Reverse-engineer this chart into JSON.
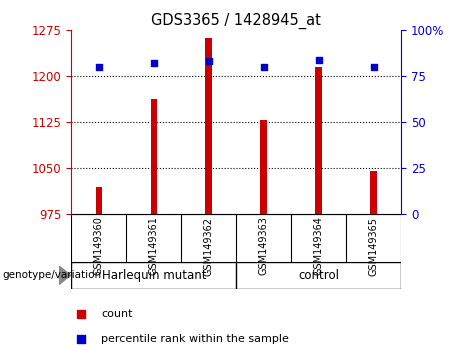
{
  "title": "GDS3365 / 1428945_at",
  "samples": [
    "GSM149360",
    "GSM149361",
    "GSM149362",
    "GSM149363",
    "GSM149364",
    "GSM149365"
  ],
  "counts": [
    1020,
    1162,
    1262,
    1128,
    1215,
    1045
  ],
  "percentiles": [
    80,
    82,
    83,
    80,
    84,
    80
  ],
  "ylim_left": [
    975,
    1275
  ],
  "yticks_left": [
    975,
    1050,
    1125,
    1200,
    1275
  ],
  "ylim_right": [
    0,
    100
  ],
  "yticks_right": [
    0,
    25,
    50,
    75,
    100
  ],
  "bar_color": "#cc0000",
  "point_color": "#0000cc",
  "group_labels": [
    "Harlequin mutant",
    "control"
  ],
  "group_split": 3,
  "group_color": "#90ee90",
  "group_label_prefix": "genotype/variation",
  "legend_count_label": "count",
  "legend_percentile_label": "percentile rank within the sample",
  "left_tick_color": "#cc0000",
  "right_tick_color": "#0000cc",
  "bar_width": 0.12,
  "background_color": "#ffffff",
  "tick_label_area_color": "#c8c8c8"
}
